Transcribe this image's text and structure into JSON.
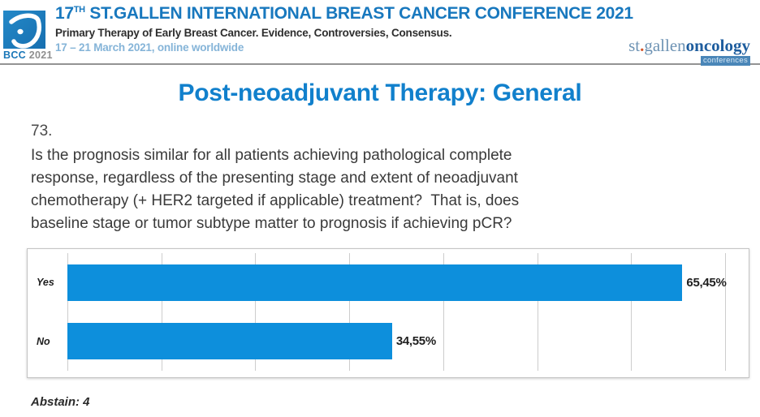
{
  "header": {
    "logo_badge": {
      "bcc": "BCC",
      "year": "2021"
    },
    "title": {
      "num": "17",
      "sup": "TH",
      "rest": " ST.GALLEN INTERNATIONAL BREAST CANCER CONFERENCE 2021"
    },
    "subtitle": "Primary Therapy of Early Breast Cancer. Evidence, Controversies, Consensus.",
    "dates": "17 – 21 March 2021, online worldwide",
    "brand": {
      "st": "st",
      "dot": ".",
      "gallen": "gallen",
      "oncology": "oncology",
      "conferences": "conferences"
    }
  },
  "slide": {
    "title": "Post-neoadjuvant Therapy: General",
    "question_number": "73.",
    "question_lines": [
      "Is the prognosis similar for all patients achieving pathological complete",
      "response, regardless of the presenting stage and extent of neoadjuvant",
      "chemotherapy (+ HER2 targeted if applicable) treatment?  That is, does",
      "baseline stage or tumor subtype matter to prognosis if achieving pCR?"
    ],
    "abstain": "Abstain: 4"
  },
  "chart_data": {
    "type": "bar",
    "orientation": "horizontal",
    "title": "",
    "xlabel": "",
    "ylabel": "",
    "categories": [
      "Yes",
      "No"
    ],
    "values": [
      65.45,
      34.55
    ],
    "value_labels": [
      "65,45%",
      "34,55%"
    ],
    "abstain_count": 4,
    "xlim": [
      0,
      72.5
    ],
    "gridline_interval": 10,
    "grid": true,
    "legend": false,
    "bar_color": "#0D8FDC"
  },
  "colors": {
    "header_title_blue": "#1878BE",
    "slide_title_blue": "#1180CC",
    "dates_blue": "#85B4D8",
    "bar_blue": "#0D8FDC"
  }
}
